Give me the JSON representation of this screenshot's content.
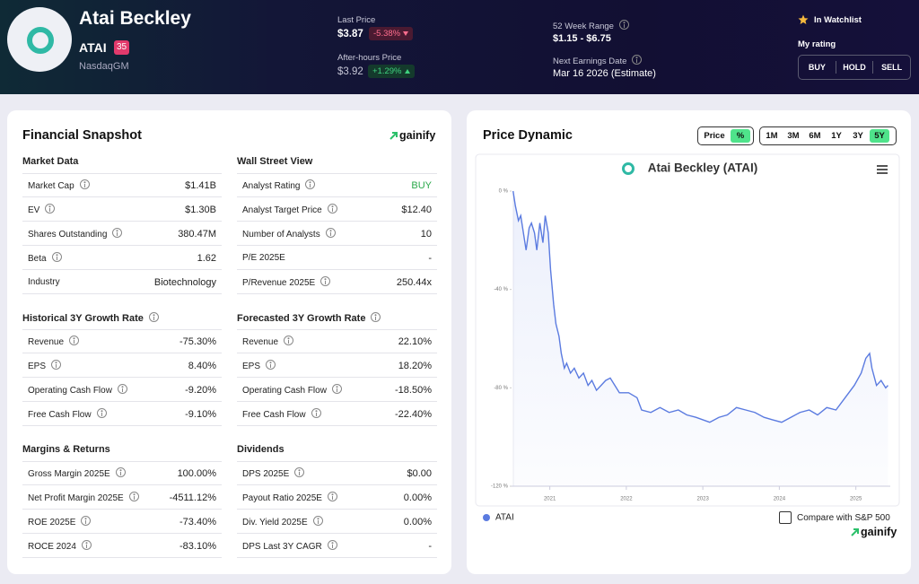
{
  "header": {
    "name": "Atai Beckley",
    "ticker": "ATAI",
    "badge": "35",
    "exchange": "NasdaqGM",
    "last_price_label": "Last Price",
    "last_price": "$3.87",
    "last_change": "-5.38%",
    "after_hours_label": "After-hours Price",
    "after_hours_price": "$3.92",
    "after_hours_change": "+1.29%",
    "range_label": "52 Week Range",
    "range": "$1.15 - $6.75",
    "earnings_label": "Next Earnings Date",
    "earnings": "Mar 16 2026 (Estimate)",
    "watchlist": "In Watchlist",
    "rating_label": "My rating",
    "rating_buttons": [
      "BUY",
      "HOLD",
      "SELL"
    ]
  },
  "snapshot": {
    "title": "Financial Snapshot",
    "brand": "gainify",
    "columns": [
      [
        {
          "title": "Market Data",
          "rows": [
            {
              "label": "Market Cap",
              "value": "$1.41B"
            },
            {
              "label": "EV",
              "value": "$1.30B"
            },
            {
              "label": "Shares Outstanding",
              "value": "380.47M"
            },
            {
              "label": "Beta",
              "value": "1.62"
            },
            {
              "label": "Industry",
              "value": "Biotechnology"
            }
          ]
        },
        {
          "title": "Historical 3Y Growth Rate",
          "rows": [
            {
              "label": "Revenue",
              "value": "-75.30%"
            },
            {
              "label": "EPS",
              "value": "8.40%"
            },
            {
              "label": "Operating Cash Flow",
              "value": "-9.20%"
            },
            {
              "label": "Free Cash Flow",
              "value": "-9.10%"
            }
          ]
        },
        {
          "title": "Margins & Returns",
          "rows": [
            {
              "label": "Gross Margin 2025E",
              "value": "100.00%"
            },
            {
              "label": "Net Profit Margin 2025E",
              "value": "-4511.12%"
            },
            {
              "label": "ROE 2025E",
              "value": "-73.40%"
            },
            {
              "label": "ROCE 2024",
              "value": "-83.10%"
            }
          ]
        }
      ],
      [
        {
          "title": "Wall Street View",
          "rows": [
            {
              "label": "Analyst Rating",
              "value": "BUY"
            },
            {
              "label": "Analyst Target Price",
              "value": "$12.40"
            },
            {
              "label": "Number of Analysts",
              "value": "10"
            },
            {
              "label": "P/E 2025E",
              "value": "-"
            },
            {
              "label": "P/Revenue 2025E",
              "value": "250.44x"
            }
          ]
        },
        {
          "title": "Forecasted 3Y Growth Rate",
          "rows": [
            {
              "label": "Revenue",
              "value": "22.10%"
            },
            {
              "label": "EPS",
              "value": "18.20%"
            },
            {
              "label": "Operating Cash Flow",
              "value": "-18.50%"
            },
            {
              "label": "Free Cash Flow",
              "value": "-22.40%"
            }
          ]
        },
        {
          "title": "Dividends",
          "rows": [
            {
              "label": "DPS 2025E",
              "value": "$0.00"
            },
            {
              "label": "Payout Ratio 2025E",
              "value": "0.00%"
            },
            {
              "label": "Div. Yield 2025E",
              "value": "0.00%"
            },
            {
              "label": "DPS Last 3Y CAGR",
              "value": "-"
            }
          ]
        }
      ]
    ]
  },
  "price_dynamic": {
    "title": "Price Dynamic",
    "modes": [
      "Price",
      "%"
    ],
    "ranges": [
      "1M",
      "3M",
      "6M",
      "1Y",
      "3Y",
      "5Y"
    ],
    "compare": "Compare with S&P 500",
    "brand": "gainify"
  },
  "chart_data": {
    "type": "line",
    "title": "Atai Beckley (ATAI)",
    "x": [
      2020.52,
      2020.55,
      2020.59,
      2020.62,
      2020.66,
      2020.69,
      2020.73,
      2020.76,
      2020.8,
      2020.83,
      2020.87,
      2020.91,
      2020.94,
      2020.98,
      2021.01,
      2021.05,
      2021.08,
      2021.12,
      2021.15,
      2021.19,
      2021.22,
      2021.27,
      2021.32,
      2021.38,
      2021.44,
      2021.5,
      2021.55,
      2021.61,
      2021.67,
      2021.73,
      2021.79,
      2021.85,
      2021.91,
      2022.03,
      2022.14,
      2022.2,
      2022.32,
      2022.44,
      2022.56,
      2022.68,
      2022.79,
      2022.91,
      2023.09,
      2023.21,
      2023.32,
      2023.44,
      2023.56,
      2023.68,
      2023.8,
      2023.91,
      2024.03,
      2024.15,
      2024.27,
      2024.39,
      2024.5,
      2024.62,
      2024.74,
      2024.86,
      2024.98,
      2025.07,
      2025.13,
      2025.18,
      2025.21,
      2025.27,
      2025.33,
      2025.39,
      2025.42
    ],
    "series": [
      {
        "name": "ATAI",
        "color": "#5b7be0",
        "values": [
          0,
          -6,
          -12,
          -10,
          -18,
          -24,
          -15,
          -13,
          -17,
          -24,
          -13,
          -21,
          -10,
          -17,
          -32,
          -46,
          -54,
          -59,
          -66,
          -72,
          -70,
          -74,
          -72,
          -76,
          -74,
          -79,
          -77,
          -81,
          -79,
          -77,
          -76,
          -79,
          -82,
          -82,
          -84,
          -89,
          -90,
          -88,
          -90,
          -89,
          -91,
          -92,
          -94,
          -92,
          -91,
          -88,
          -89,
          -90,
          -92,
          -93,
          -94,
          -92,
          -90,
          -89,
          -91,
          -88,
          -89,
          -84,
          -79,
          -74,
          -68,
          -66,
          -72,
          -79,
          -77,
          -80,
          -79
        ]
      }
    ],
    "xlim": [
      2020.5,
      2025.45
    ],
    "ylim": [
      -120,
      0
    ],
    "xticks": [
      2021,
      2022,
      2023,
      2024,
      2025
    ],
    "yticks": [
      {
        "value": 0,
        "label": "0 %"
      },
      {
        "value": -40,
        "label": "-40 %"
      },
      {
        "value": -80,
        "label": "-80 %"
      },
      {
        "value": -120,
        "label": "-120 %"
      }
    ]
  }
}
